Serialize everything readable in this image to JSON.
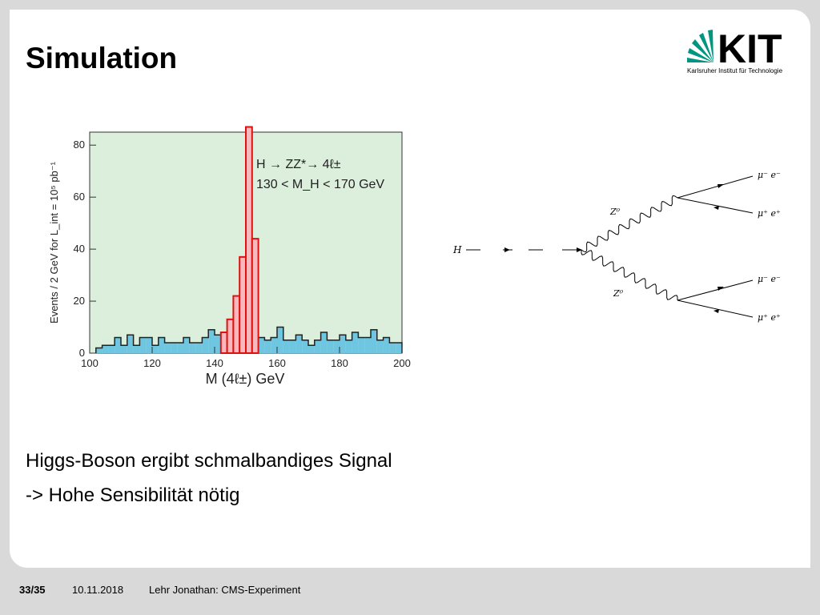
{
  "slide": {
    "title": "Simulation",
    "bullets": [
      "Higgs-Boson ergibt schmalbandiges Signal",
      "-> Hohe Sensibilität nötig"
    ]
  },
  "logo": {
    "text": "KIT",
    "subtitle": "Karlsruher Institut für Technologie",
    "color": "#009682"
  },
  "footer": {
    "page": "33/35",
    "date": "10.11.2018",
    "author": "Lehr Jonathan: CMS-Experiment"
  },
  "chart_data": {
    "type": "bar",
    "title_line1": "H → ZZ*→ 4ℓ±",
    "title_line2": "130 < M_H < 170 GeV",
    "xlabel": "M (4ℓ±)  GeV",
    "ylabel": "Events / 2 GeV for L_int = 10⁵ pb⁻¹",
    "xlim": [
      100,
      200
    ],
    "ylim": [
      0,
      85
    ],
    "xticks": [
      100,
      120,
      140,
      160,
      180,
      200
    ],
    "yticks": [
      0,
      20,
      40,
      60,
      80
    ],
    "bin_width": 2,
    "bin_starts": [
      102,
      104,
      106,
      108,
      110,
      112,
      114,
      116,
      118,
      120,
      122,
      124,
      126,
      128,
      130,
      132,
      134,
      136,
      138,
      140,
      142,
      144,
      146,
      148,
      150,
      152,
      154,
      156,
      158,
      160,
      162,
      164,
      166,
      168,
      170,
      172,
      174,
      176,
      178,
      180,
      182,
      184,
      186,
      188,
      190,
      192,
      194,
      196,
      198
    ],
    "series": [
      {
        "name": "background",
        "color": "#6ec6e0",
        "values": [
          2,
          3,
          3,
          6,
          3,
          7,
          3,
          6,
          6,
          3,
          6,
          4,
          4,
          4,
          6,
          4,
          4,
          6,
          9,
          7,
          5,
          5,
          5,
          6,
          5,
          4,
          6,
          5,
          6,
          10,
          5,
          5,
          7,
          5,
          3,
          5,
          8,
          5,
          5,
          7,
          5,
          8,
          6,
          6,
          9,
          5,
          6,
          4,
          4
        ]
      },
      {
        "name": "signal",
        "color": "#f7b9bd",
        "values": [
          0,
          0,
          0,
          0,
          0,
          0,
          0,
          0,
          0,
          0,
          0,
          0,
          0,
          0,
          0,
          0,
          0,
          0,
          0,
          0,
          3,
          8,
          17,
          31,
          82,
          40,
          0,
          0,
          0,
          0,
          0,
          0,
          0,
          0,
          0,
          0,
          0,
          0,
          0,
          0,
          0,
          0,
          0,
          0,
          0,
          0,
          0,
          0,
          0
        ]
      }
    ],
    "plot_background": "#dcefdc"
  },
  "diagram": {
    "higgs": "H",
    "z_upper": "Z⁰",
    "z_lower": "Z⁰",
    "out1": "μ⁻ e⁻",
    "out2": "μ⁺ e⁺",
    "out3": "μ⁻ e⁻",
    "out4": "μ⁺ e⁺"
  }
}
